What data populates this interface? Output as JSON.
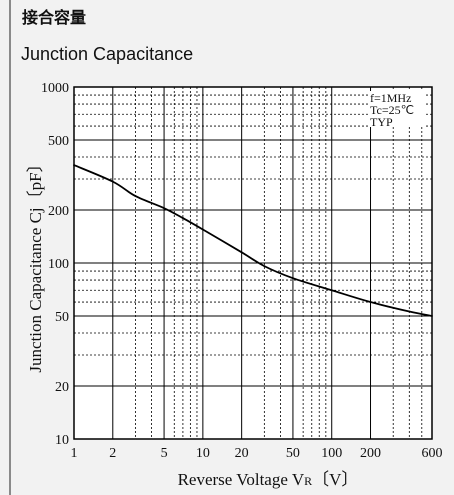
{
  "header": {
    "title_jp": "接合容量",
    "title_en": "Junction Capacitance"
  },
  "chart_data": {
    "type": "line",
    "x_scale": "log",
    "y_scale": "log",
    "xlim": [
      1,
      600
    ],
    "ylim": [
      10,
      1000
    ],
    "x_tick_labels": [
      {
        "value": 1,
        "label": "1"
      },
      {
        "value": 2,
        "label": "2"
      },
      {
        "value": 5,
        "label": "5"
      },
      {
        "value": 10,
        "label": "10"
      },
      {
        "value": 20,
        "label": "20"
      },
      {
        "value": 50,
        "label": "50"
      },
      {
        "value": 100,
        "label": "100"
      },
      {
        "value": 200,
        "label": "200"
      },
      {
        "value": 600,
        "label": "600"
      }
    ],
    "x_grid_major": [
      1,
      2,
      5,
      10,
      20,
      50,
      100,
      200,
      600
    ],
    "x_grid_minor": [
      3,
      4,
      6,
      7,
      8,
      9,
      30,
      40,
      60,
      70,
      80,
      90,
      300,
      400,
      500
    ],
    "y_tick_labels": [
      {
        "value": 10,
        "label": "10"
      },
      {
        "value": 20,
        "label": "20"
      },
      {
        "value": 50,
        "label": "50"
      },
      {
        "value": 100,
        "label": "100"
      },
      {
        "value": 200,
        "label": "200"
      },
      {
        "value": 500,
        "label": "500"
      },
      {
        "value": 1000,
        "label": "1000"
      }
    ],
    "y_grid_major": [
      10,
      20,
      50,
      100,
      200,
      500,
      1000
    ],
    "y_grid_minor": [
      30,
      40,
      60,
      70,
      80,
      90,
      300,
      400,
      600,
      700,
      800,
      900
    ],
    "xlabel": "Reverse Voltage  V",
    "xlabel_sub": "R",
    "xlabel_unit": "〔V〕",
    "ylabel": "Junction Capacitance  Cj〔pF〕",
    "annotations": [
      "f=1MHz",
      "Tc=25℃",
      "TYP"
    ],
    "grid": true,
    "series": [
      {
        "x": [
          1,
          2,
          3,
          5,
          7,
          10,
          20,
          30,
          50,
          100,
          200,
          400,
          600
        ],
        "y": [
          360,
          290,
          240,
          205,
          180,
          155,
          115,
          96,
          82,
          70,
          60,
          53,
          50
        ]
      }
    ]
  }
}
